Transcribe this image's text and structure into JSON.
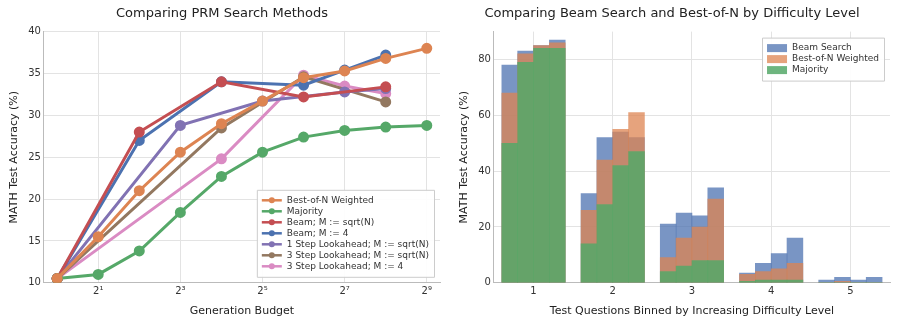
{
  "chart_data": [
    {
      "type": "line",
      "title": "Comparing PRM Search Methods",
      "x_label": "Generation Budget",
      "y_label": "MATH Test Accuracy (%)",
      "log": "x",
      "xlim": [
        0.8,
        640
      ],
      "xticks": [
        {
          "value": 2,
          "label": "2¹"
        },
        {
          "value": 8,
          "label": "2³"
        },
        {
          "value": 32,
          "label": "2⁵"
        },
        {
          "value": 128,
          "label": "2⁷"
        },
        {
          "value": 512,
          "label": "2⁹"
        }
      ],
      "ylim": [
        10,
        40
      ],
      "yticks": [
        10,
        15,
        20,
        25,
        30,
        35,
        40
      ],
      "grid": true,
      "legend": "lower right",
      "marker": "circle",
      "series": [
        {
          "name": "Best-of-N Weighted",
          "color": "#dd8452",
          "x": [
            1,
            2,
            4,
            8,
            16,
            32,
            64,
            128,
            256,
            512
          ],
          "values": [
            10.5,
            15.5,
            21,
            25.6,
            29,
            31.7,
            34.5,
            35.3,
            36.8,
            38
          ]
        },
        {
          "name": "Majority",
          "color": "#55a868",
          "x": [
            1,
            2,
            4,
            8,
            16,
            32,
            64,
            128,
            256,
            512
          ],
          "values": [
            10.5,
            11,
            13.8,
            18.4,
            22.7,
            25.6,
            27.4,
            28.2,
            28.6,
            28.8
          ]
        },
        {
          "name": "Beam; M := sqrt(N)",
          "color": "#c44e52",
          "x": [
            1,
            4,
            16,
            64,
            256
          ],
          "values": [
            10.5,
            28,
            34,
            32.2,
            33.4
          ]
        },
        {
          "name": "Beam; M := 4",
          "color": "#4c72b0",
          "x": [
            1,
            4,
            16,
            64,
            128,
            256
          ],
          "values": [
            10.5,
            27,
            34,
            33.6,
            35.4,
            37.2
          ]
        },
        {
          "name": "1 Step Lookahead; M := sqrt(N)",
          "color": "#8172b3",
          "x": [
            1,
            8,
            32,
            128,
            256
          ],
          "values": [
            10.5,
            28.8,
            31.7,
            32.8,
            33.2
          ]
        },
        {
          "name": "3 Step Lookahead; M := sqrt(N)",
          "color": "#937860",
          "x": [
            1,
            16,
            64,
            256
          ],
          "values": [
            10.5,
            28.5,
            34.6,
            31.6
          ]
        },
        {
          "name": "3 Step Lookahead; M := 4",
          "color": "#da8bc3",
          "x": [
            1,
            16,
            64,
            128,
            256
          ],
          "values": [
            10.5,
            24.8,
            34.8,
            33.5,
            32.6
          ]
        }
      ]
    },
    {
      "type": "bar",
      "title": "Comparing Beam Search and Best-of-N by Difficulty Level",
      "x_label": "Test Questions Binned by Increasing Difficulty Level",
      "y_label": "MATH Test Accuracy (%)",
      "x": [
        1,
        2,
        3,
        4,
        5
      ],
      "xlim": [
        0.5,
        5.5
      ],
      "xticks": [
        1,
        2,
        3,
        4,
        5
      ],
      "ylim": [
        0,
        90
      ],
      "yticks": [
        0,
        20,
        40,
        60,
        80
      ],
      "grid": true,
      "legend": "upper right",
      "series": [
        {
          "name": "Beam Search",
          "color": "#4c72b0",
          "values": [
            [
              78,
              83,
              85,
              87
            ],
            [
              32,
              52,
              54,
              52
            ],
            [
              21,
              25,
              24,
              34
            ],
            [
              3.5,
              7,
              10.5,
              16
            ],
            [
              1,
              2,
              1,
              2
            ]
          ]
        },
        {
          "name": "Best-of-N Weighted",
          "color": "#dd8452",
          "values": [
            [
              68,
              82,
              85,
              86
            ],
            [
              26,
              44,
              55,
              61
            ],
            [
              9,
              16,
              20,
              30
            ],
            [
              3,
              4,
              5,
              7
            ],
            [
              0,
              0.5,
              0,
              0
            ]
          ]
        },
        {
          "name": "Majority",
          "color": "#55a868",
          "values": [
            [
              50,
              79,
              84,
              84
            ],
            [
              14,
              28,
              42,
              47
            ],
            [
              4,
              6,
              8,
              8
            ],
            [
              0.5,
              1,
              1,
              1
            ],
            [
              0,
              0,
              0,
              0
            ]
          ]
        }
      ]
    }
  ]
}
